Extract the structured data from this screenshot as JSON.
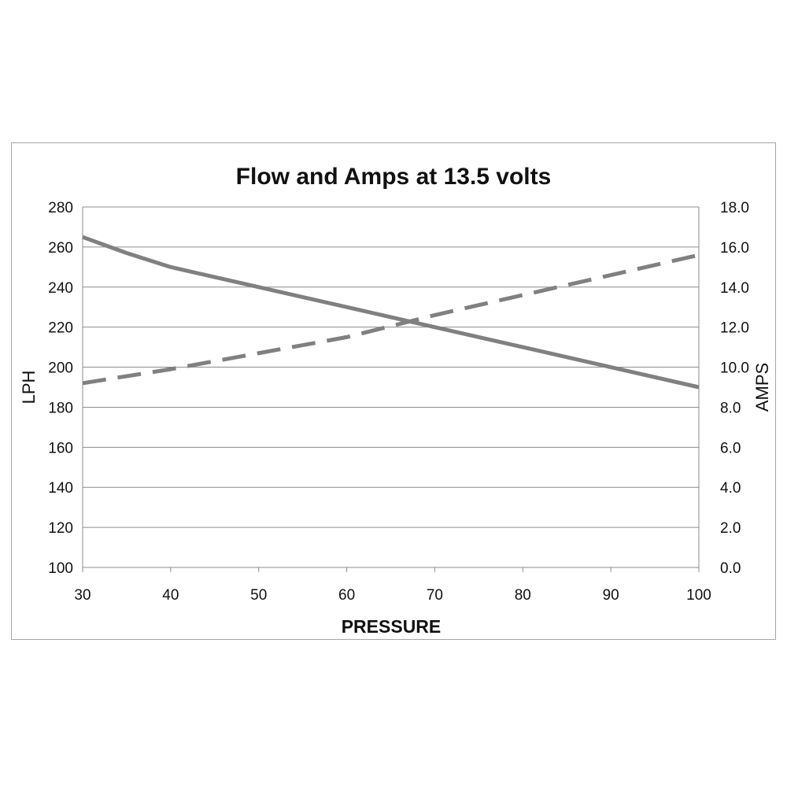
{
  "chart_data": {
    "type": "line",
    "title": "Flow and Amps at 13.5 volts",
    "xlabel": "PRESSURE",
    "ylabel": "LPH",
    "y2label": "AMPS",
    "x_ticks": [
      "30",
      "40",
      "50",
      "60",
      "70",
      "80",
      "90",
      "100"
    ],
    "y_ticks": [
      "100",
      "120",
      "140",
      "160",
      "180",
      "200",
      "220",
      "240",
      "260",
      "280"
    ],
    "y2_ticks": [
      "0.0",
      "2.0",
      "4.0",
      "6.0",
      "8.0",
      "10.0",
      "12.0",
      "14.0",
      "16.0",
      "18.0"
    ],
    "xlim": [
      30,
      100
    ],
    "ylim": [
      100,
      280
    ],
    "y2lim": [
      0,
      18
    ],
    "grid": "horizontal",
    "series": [
      {
        "axis": "left",
        "style": "solid",
        "color": "#808080",
        "x": [
          30,
          35,
          40,
          45,
          50,
          60,
          70,
          80,
          90,
          100
        ],
        "values": [
          265,
          257,
          250,
          245,
          240,
          230,
          220,
          210,
          200,
          190
        ]
      },
      {
        "axis": "right",
        "style": "dashed",
        "color": "#808080",
        "x": [
          30,
          40,
          50,
          60,
          70,
          80,
          90,
          100
        ],
        "values": [
          9.2,
          9.9,
          10.7,
          11.5,
          12.6,
          13.6,
          14.6,
          15.6
        ]
      }
    ]
  }
}
